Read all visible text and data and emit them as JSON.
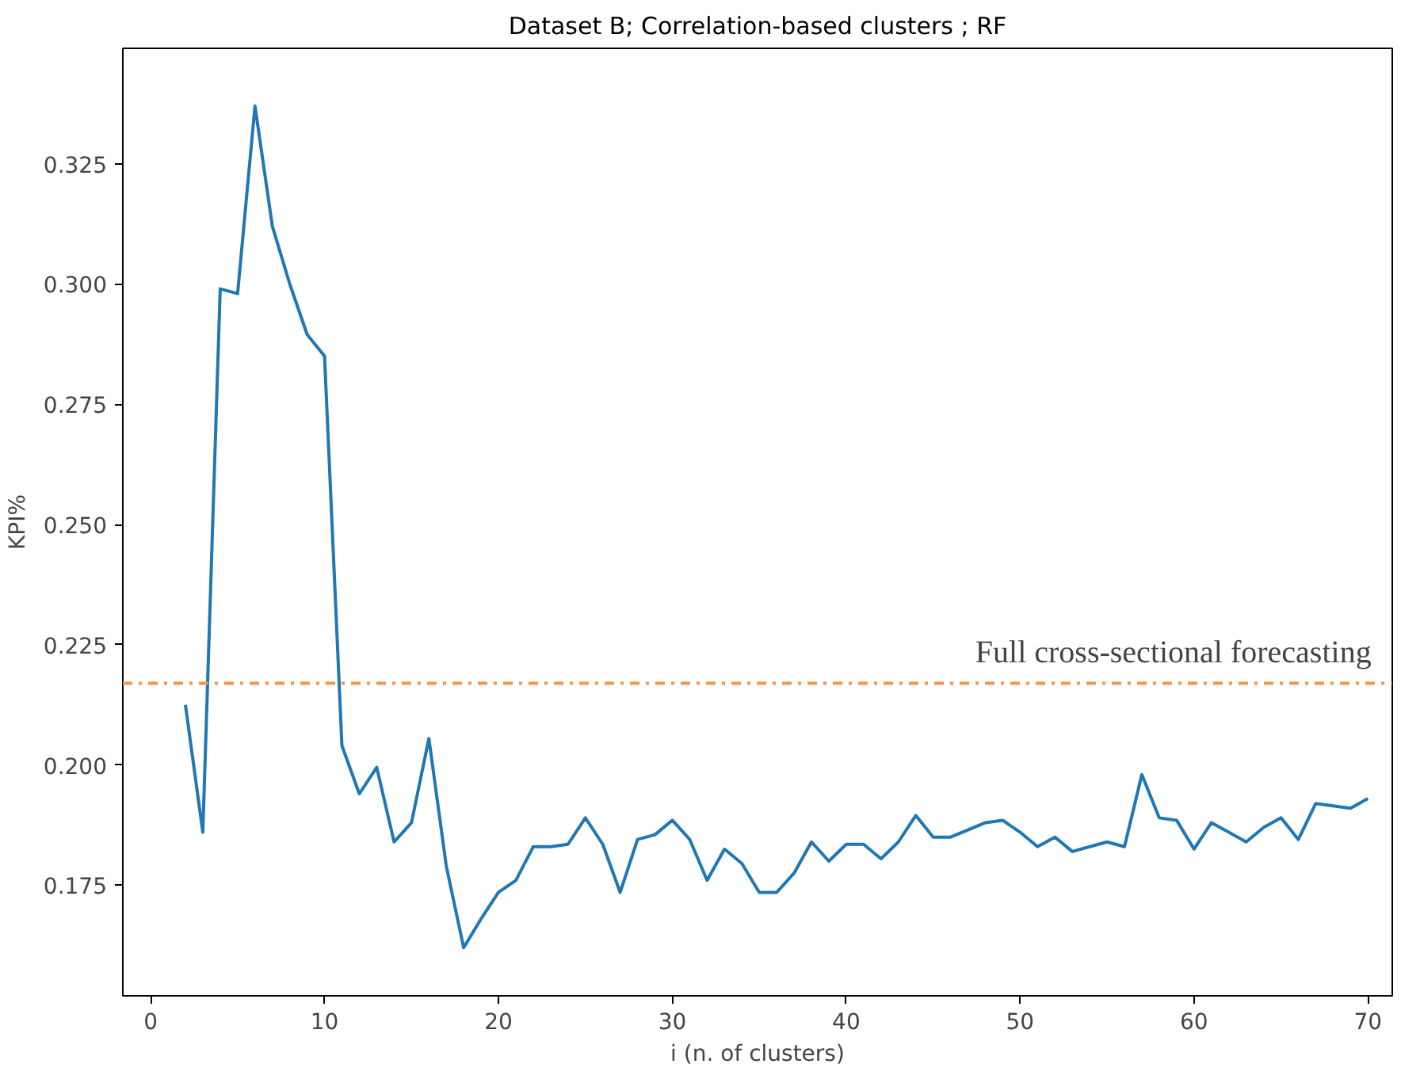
{
  "chart_data": {
    "type": "line",
    "title": "Dataset B; Correlation-based clusters ; RF",
    "xlabel": "i (n. of clusters)",
    "ylabel": "KPI%",
    "x": [
      2,
      3,
      4,
      5,
      6,
      7,
      8,
      9,
      10,
      11,
      12,
      13,
      14,
      15,
      16,
      17,
      18,
      19,
      20,
      21,
      22,
      23,
      24,
      25,
      26,
      27,
      28,
      29,
      30,
      31,
      32,
      33,
      34,
      35,
      36,
      37,
      38,
      39,
      40,
      41,
      42,
      43,
      44,
      45,
      46,
      47,
      48,
      49,
      50,
      51,
      52,
      53,
      54,
      55,
      56,
      57,
      58,
      59,
      60,
      61,
      62,
      63,
      64,
      65,
      66,
      67,
      68,
      69,
      70
    ],
    "series": [
      {
        "color": "#1f77b4",
        "values": [
          0.2125,
          0.186,
          0.299,
          0.298,
          0.337,
          0.312,
          0.3,
          0.2895,
          0.285,
          0.204,
          0.194,
          0.1995,
          0.184,
          0.188,
          0.2055,
          0.179,
          0.162,
          0.168,
          0.1735,
          0.176,
          0.183,
          0.183,
          0.1835,
          0.189,
          0.1835,
          0.1735,
          0.1845,
          0.1855,
          0.1885,
          0.1845,
          0.176,
          0.1825,
          0.1795,
          0.1735,
          0.1735,
          0.1775,
          0.184,
          0.18,
          0.1835,
          0.1835,
          0.1805,
          0.184,
          0.1895,
          0.185,
          0.185,
          0.1865,
          0.188,
          0.1885,
          0.186,
          0.183,
          0.185,
          0.182,
          0.183,
          0.184,
          0.183,
          0.198,
          0.189,
          0.1885,
          0.1825,
          0.188,
          0.186,
          0.184,
          0.187,
          0.189,
          0.1845,
          0.192,
          0.1915,
          0.191,
          0.193
        ]
      }
    ],
    "xlim": [
      -1.6,
      71.4
    ],
    "ylim": [
      0.152,
      0.349
    ],
    "xticks": [
      0,
      10,
      20,
      30,
      40,
      50,
      60,
      70
    ],
    "yticks": [
      {
        "value": 0.175,
        "label": "0.175"
      },
      {
        "value": 0.2,
        "label": "0.200"
      },
      {
        "value": 0.225,
        "label": "0.225"
      },
      {
        "value": 0.25,
        "label": "0.250"
      },
      {
        "value": 0.275,
        "label": "0.275"
      },
      {
        "value": 0.3,
        "label": "0.300"
      },
      {
        "value": 0.325,
        "label": "0.325"
      }
    ],
    "ref_lines": [
      {
        "axis": "y",
        "value": 0.217,
        "label": "Full cross-sectional forecasting",
        "color": "#f5954a",
        "line_style": "dashdot"
      }
    ],
    "grid": false,
    "marker": "none",
    "line_style": "solid"
  }
}
